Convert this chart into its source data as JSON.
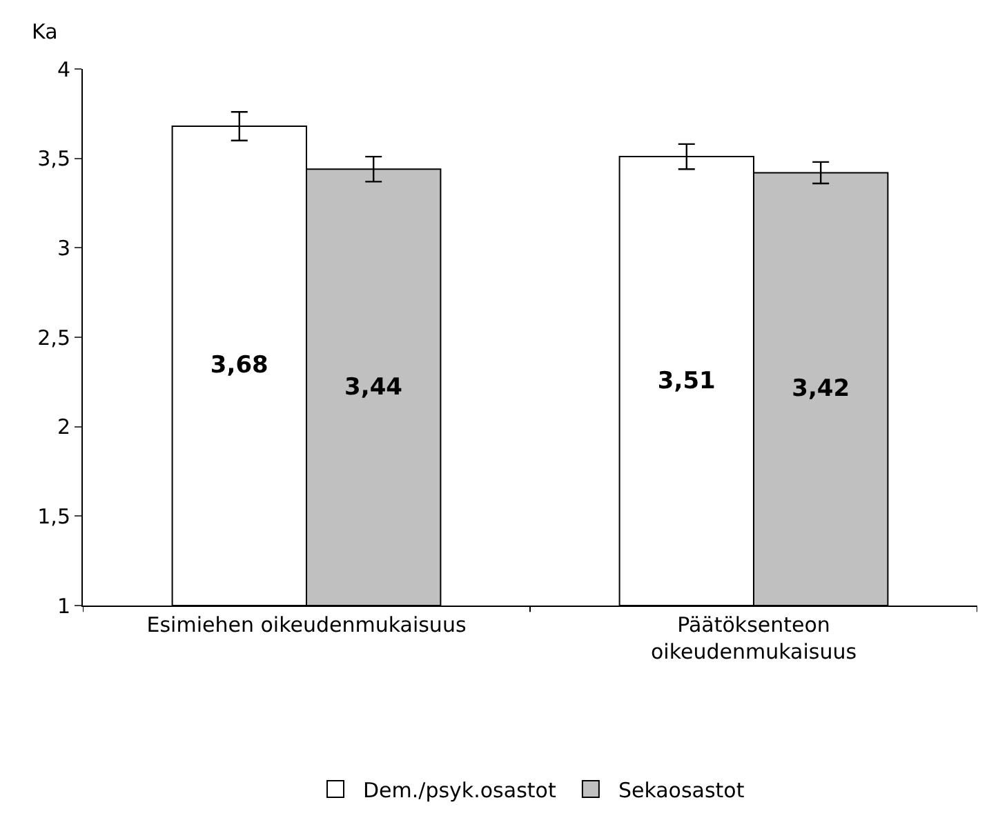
{
  "chart_data": {
    "type": "bar",
    "ylabel": "Ka",
    "categories": [
      "Esimiehen oikeudenmukaisuus",
      "Päätöksenteon oikeudenmukaisuus"
    ],
    "series": [
      {
        "name": "Dem./psyk.osastot",
        "color": "#ffffff",
        "values": [
          3.68,
          3.51
        ],
        "errors": [
          0.08,
          0.07
        ],
        "value_labels": [
          "3,68",
          "3,51"
        ]
      },
      {
        "name": "Sekaosastot",
        "color": "#c0c0c0",
        "values": [
          3.44,
          3.42
        ],
        "errors": [
          0.07,
          0.06
        ],
        "value_labels": [
          "3,44",
          "3,42"
        ]
      }
    ],
    "ylim": [
      1,
      4
    ],
    "yticks": [
      1,
      {
        "value": 1.5,
        "label": "1,5"
      },
      2,
      {
        "value": 2.5,
        "label": "2,5"
      },
      3,
      {
        "value": 3.5,
        "label": "3,5"
      },
      4
    ],
    "legend": "bottom"
  }
}
